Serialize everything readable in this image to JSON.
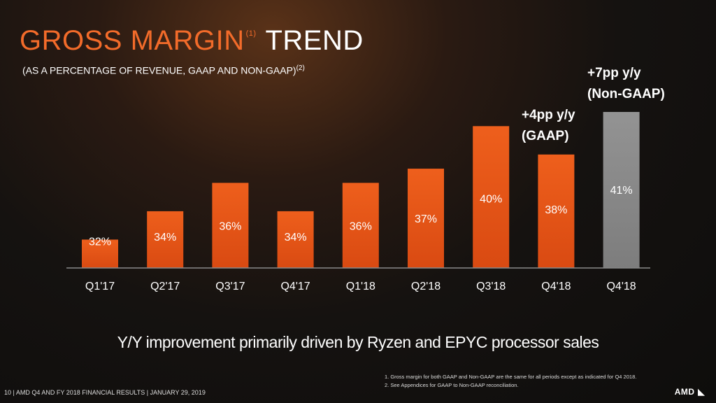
{
  "header": {
    "title_part1": "GROSS MARGIN",
    "title_sup": "(1)",
    "title_part2": "TREND",
    "subtitle": "(AS A PERCENTAGE OF REVENUE, GAAP AND NON-GAAP)",
    "subtitle_sup": "(2)"
  },
  "chart_data": {
    "type": "bar",
    "categories": [
      "Q1'17",
      "Q2'17",
      "Q3'17",
      "Q4'17",
      "Q1'18",
      "Q2'18",
      "Q3'18",
      "Q4'18",
      "Q4'18"
    ],
    "values": [
      32,
      34,
      36,
      34,
      36,
      37,
      40,
      38,
      41
    ],
    "value_labels": [
      "32%",
      "34%",
      "36%",
      "34%",
      "36%",
      "37%",
      "40%",
      "38%",
      "41%"
    ],
    "bar_colors": [
      "#e8591d",
      "#e8591d",
      "#e8591d",
      "#e8591d",
      "#e8591d",
      "#e8591d",
      "#e8591d",
      "#e8591d",
      "#8c8c8c"
    ],
    "ylim": [
      30,
      41
    ],
    "grid": false,
    "annotations": [
      {
        "line1": "+4pp y/y",
        "line2": "(GAAP)"
      },
      {
        "line1": "+7pp y/y",
        "line2": "(Non-GAAP)"
      }
    ]
  },
  "takeaway": "Y/Y improvement primarily driven by Ryzen and EPYC processor sales",
  "footnotes": [
    "1.    Gross margin for both GAAP and Non-GAAP are the same for all periods except as indicated for Q4 2018.",
    "2.    See Appendices for GAAP to Non-GAAP reconciliation."
  ],
  "footer": {
    "page_number": "10",
    "text": "| AMD Q4 AND FY 2018 FINANCIAL RESULTS | JANUARY 29, 2019"
  },
  "logo": "AMD",
  "logo_mark": "◣",
  "colors": {
    "accent": "#f26b2a",
    "bar": "#e8591d",
    "bar_non_gaap": "#8c8c8c"
  }
}
